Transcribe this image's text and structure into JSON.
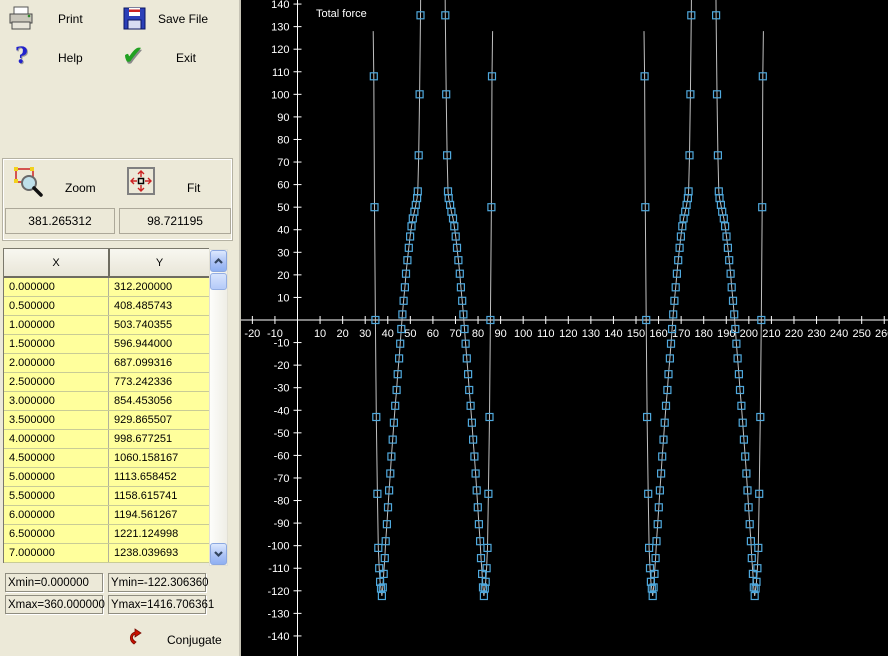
{
  "toolbar": {
    "print_label": "Print",
    "save_label": "Save File",
    "help_label": "Help",
    "exit_label": "Exit"
  },
  "zoom_panel": {
    "zoom_label": "Zoom",
    "fit_label": "Fit",
    "cursor_x_value": "381.265312",
    "cursor_y_value": "98.721195"
  },
  "table": {
    "columns": [
      "X",
      "Y"
    ],
    "rows": [
      [
        "0.000000",
        "312.200000"
      ],
      [
        "0.500000",
        "408.485743"
      ],
      [
        "1.000000",
        "503.740355"
      ],
      [
        "1.500000",
        "596.944000"
      ],
      [
        "2.000000",
        "687.099316"
      ],
      [
        "2.500000",
        "773.242336"
      ],
      [
        "3.000000",
        "854.453056"
      ],
      [
        "3.500000",
        "929.865507"
      ],
      [
        "4.000000",
        "998.677251"
      ],
      [
        "4.500000",
        "1060.158167"
      ],
      [
        "5.000000",
        "1113.658452"
      ],
      [
        "5.500000",
        "1158.615741"
      ],
      [
        "6.000000",
        "1194.561267"
      ],
      [
        "6.500000",
        "1221.124998"
      ],
      [
        "7.000000",
        "1238.039693"
      ]
    ]
  },
  "bounds": {
    "xmin": "Xmin=0.000000",
    "ymin": "Ymin=-122.306360",
    "xmax": "Xmax=360.000000",
    "ymax": "Ymax=1416.706361"
  },
  "conjugate": {
    "label": "Conjugate"
  },
  "chart_data": {
    "type": "scatter",
    "title": "Total force",
    "data_xmin": 0.0,
    "data_xmax": 360.0,
    "data_ymin": -122.30636,
    "data_ymax": 1416.706361,
    "x_axis": {
      "ticks_from": -20,
      "ticks_to": 260,
      "tick_step": 10,
      "omit_zero_label": true,
      "visible_min": -25,
      "visible_max": 261.6
    },
    "y_axis": {
      "ticks_from": -140,
      "ticks_to": 140,
      "tick_step": 10,
      "omit_zero_label": true,
      "visible_min": -149,
      "visible_max": 142
    },
    "styles": {
      "bg": "#000000",
      "axis_color": "#FFFFFF",
      "label_color": "#FFFFFF",
      "line_color": "#C0C0C0",
      "marker_color": "#4FA8DC",
      "marker_size": 7
    },
    "lobe_offsets": [
      0,
      120
    ],
    "lobe_profile": [
      [
        33.55,
        128,
        0
      ],
      [
        33.8,
        108,
        1
      ],
      [
        34.1,
        50,
        1
      ],
      [
        34.5,
        0,
        1
      ],
      [
        34.9,
        -43,
        1
      ],
      [
        35.4,
        -77,
        1
      ],
      [
        35.8,
        -101,
        1
      ],
      [
        36.2,
        -110,
        1
      ],
      [
        36.6,
        -116,
        1
      ],
      [
        37.0,
        -119,
        1
      ],
      [
        37.4,
        -122.3,
        1
      ],
      [
        37.8,
        -118.5,
        1
      ],
      [
        38.2,
        -112.5,
        1
      ],
      [
        38.7,
        -105.5,
        1
      ],
      [
        39.1,
        -98,
        1
      ],
      [
        39.6,
        -90.5,
        1
      ],
      [
        40.1,
        -83,
        1
      ],
      [
        40.6,
        -75.5,
        1
      ],
      [
        41.1,
        -68,
        1
      ],
      [
        41.6,
        -60.5,
        1
      ],
      [
        42.2,
        -53,
        1
      ],
      [
        42.7,
        -45.5,
        1
      ],
      [
        43.3,
        -38,
        1
      ],
      [
        43.9,
        -31,
        1
      ],
      [
        44.4,
        -24,
        1
      ],
      [
        45.0,
        -17,
        1
      ],
      [
        45.5,
        -10.5,
        1
      ],
      [
        46.0,
        -4,
        1
      ],
      [
        46.5,
        2.5,
        1
      ],
      [
        47.0,
        8.5,
        1
      ],
      [
        47.6,
        14.5,
        1
      ],
      [
        48.1,
        20.5,
        1
      ],
      [
        48.7,
        26.5,
        1
      ],
      [
        49.3,
        32,
        1
      ],
      [
        49.9,
        37,
        1
      ],
      [
        50.5,
        41.5,
        1
      ],
      [
        51.1,
        45,
        1
      ],
      [
        51.8,
        48,
        1
      ],
      [
        52.4,
        51,
        1
      ],
      [
        53.0,
        54,
        1
      ],
      [
        53.3,
        57,
        1
      ],
      [
        53.7,
        73,
        1
      ],
      [
        54.1,
        100,
        1
      ],
      [
        54.5,
        135,
        1
      ],
      [
        54.8,
        175,
        0
      ],
      [
        65.2,
        175,
        0
      ],
      [
        65.5,
        135,
        1
      ],
      [
        65.9,
        100,
        1
      ],
      [
        66.3,
        73,
        1
      ],
      [
        66.7,
        57,
        1
      ],
      [
        67.0,
        54,
        1
      ],
      [
        67.6,
        51,
        1
      ],
      [
        68.2,
        48,
        1
      ],
      [
        68.9,
        45,
        1
      ],
      [
        69.5,
        41.5,
        1
      ],
      [
        70.1,
        37,
        1
      ],
      [
        70.7,
        32,
        1
      ],
      [
        71.3,
        26.5,
        1
      ],
      [
        71.9,
        20.5,
        1
      ],
      [
        72.4,
        14.5,
        1
      ],
      [
        73.0,
        8.5,
        1
      ],
      [
        73.5,
        2.5,
        1
      ],
      [
        74.0,
        -4,
        1
      ],
      [
        74.5,
        -10.5,
        1
      ],
      [
        75.0,
        -17,
        1
      ],
      [
        75.6,
        -24,
        1
      ],
      [
        76.1,
        -31,
        1
      ],
      [
        76.7,
        -38,
        1
      ],
      [
        77.3,
        -45.5,
        1
      ],
      [
        77.8,
        -53,
        1
      ],
      [
        78.4,
        -60.5,
        1
      ],
      [
        78.9,
        -68,
        1
      ],
      [
        79.4,
        -75.5,
        1
      ],
      [
        79.9,
        -83,
        1
      ],
      [
        80.4,
        -90.5,
        1
      ],
      [
        80.9,
        -98,
        1
      ],
      [
        81.3,
        -105.5,
        1
      ],
      [
        81.8,
        -112.5,
        1
      ],
      [
        82.2,
        -118.5,
        1
      ],
      [
        82.6,
        -122.3,
        1
      ],
      [
        83.0,
        -119,
        1
      ],
      [
        83.4,
        -116,
        1
      ],
      [
        83.8,
        -110,
        1
      ],
      [
        84.2,
        -101,
        1
      ],
      [
        84.6,
        -77,
        1
      ],
      [
        85.1,
        -43,
        1
      ],
      [
        85.5,
        0,
        1
      ],
      [
        85.9,
        50,
        1
      ],
      [
        86.2,
        108,
        1
      ],
      [
        86.45,
        128,
        0
      ]
    ]
  }
}
